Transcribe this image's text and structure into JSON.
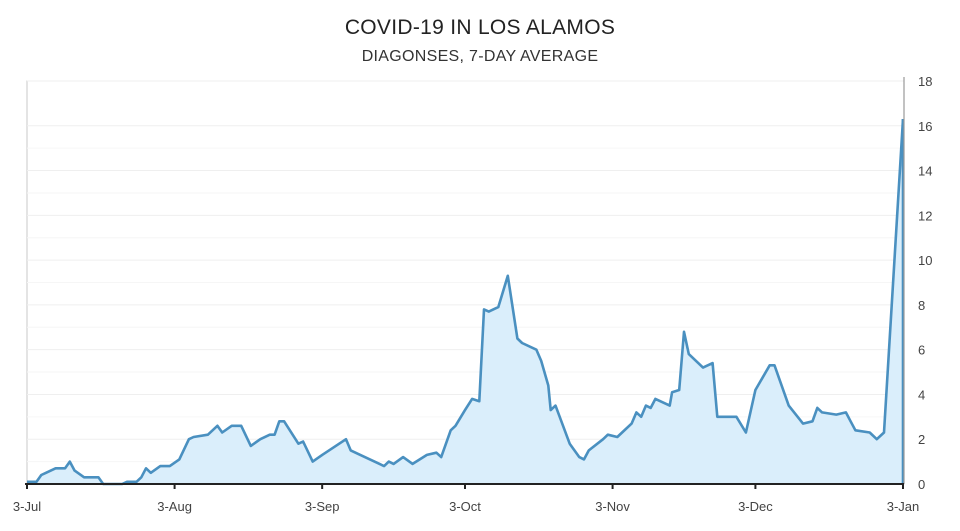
{
  "chart_data": {
    "type": "area",
    "title": "COVID-19 IN LOS ALAMOS",
    "subtitle": "DIAGONSES, 7-DAY AVERAGE",
    "xlabel": "",
    "ylabel": "",
    "ylim": [
      0,
      18
    ],
    "yticks": [
      0,
      2,
      4,
      6,
      8,
      10,
      12,
      14,
      16,
      18
    ],
    "y_axis_side": "right",
    "grid": true,
    "xlim_days": [
      0,
      184
    ],
    "xticks": [
      {
        "day": 0,
        "label": "3-Jul"
      },
      {
        "day": 31,
        "label": "3-Aug"
      },
      {
        "day": 62,
        "label": "3-Sep"
      },
      {
        "day": 92,
        "label": "3-Oct"
      },
      {
        "day": 123,
        "label": "3-Nov"
      },
      {
        "day": 153,
        "label": "3-Dec"
      },
      {
        "day": 184,
        "label": "3-Jan"
      }
    ],
    "series": [
      {
        "name": "Diagnoses, 7-day average",
        "color": "#4a90c0",
        "fill": "#daeefb",
        "points": [
          [
            0,
            0.1
          ],
          [
            2,
            0.1
          ],
          [
            3,
            0.4
          ],
          [
            4,
            0.5
          ],
          [
            6,
            0.7
          ],
          [
            8,
            0.7
          ],
          [
            9,
            1.0
          ],
          [
            10,
            0.6
          ],
          [
            12,
            0.3
          ],
          [
            15,
            0.3
          ],
          [
            16,
            0
          ],
          [
            20,
            0
          ],
          [
            21,
            0.1
          ],
          [
            23,
            0.1
          ],
          [
            24,
            0.3
          ],
          [
            25,
            0.7
          ],
          [
            26,
            0.5
          ],
          [
            28,
            0.8
          ],
          [
            30,
            0.8
          ],
          [
            32,
            1.1
          ],
          [
            34,
            2.0
          ],
          [
            35,
            2.1
          ],
          [
            38,
            2.2
          ],
          [
            40,
            2.6
          ],
          [
            41,
            2.3
          ],
          [
            43,
            2.6
          ],
          [
            45,
            2.6
          ],
          [
            47,
            1.7
          ],
          [
            49,
            2.0
          ],
          [
            51,
            2.2
          ],
          [
            52,
            2.2
          ],
          [
            53,
            2.8
          ],
          [
            54,
            2.8
          ],
          [
            57,
            1.8
          ],
          [
            58,
            1.9
          ],
          [
            60,
            1.0
          ],
          [
            62,
            1.3
          ],
          [
            67,
            2.0
          ],
          [
            68,
            1.5
          ],
          [
            70,
            1.3
          ],
          [
            73,
            1.0
          ],
          [
            75,
            0.8
          ],
          [
            76,
            1.0
          ],
          [
            77,
            0.9
          ],
          [
            79,
            1.2
          ],
          [
            81,
            0.9
          ],
          [
            84,
            1.3
          ],
          [
            86,
            1.4
          ],
          [
            87,
            1.2
          ],
          [
            89,
            2.4
          ],
          [
            90,
            2.6
          ],
          [
            92,
            3.3
          ],
          [
            93.5,
            3.8
          ],
          [
            95,
            3.7
          ],
          [
            96,
            7.8
          ],
          [
            97,
            7.7
          ],
          [
            99,
            7.9
          ],
          [
            101,
            9.3
          ],
          [
            103,
            6.5
          ],
          [
            104,
            6.3
          ],
          [
            107,
            6.0
          ],
          [
            108,
            5.5
          ],
          [
            109.5,
            4.4
          ],
          [
            110,
            3.3
          ],
          [
            111,
            3.5
          ],
          [
            114,
            1.8
          ],
          [
            116,
            1.2
          ],
          [
            117,
            1.1
          ],
          [
            118,
            1.5
          ],
          [
            121,
            2.0
          ],
          [
            122,
            2.2
          ],
          [
            124,
            2.1
          ],
          [
            125,
            2.3
          ],
          [
            127,
            2.7
          ],
          [
            128,
            3.2
          ],
          [
            129,
            3.0
          ],
          [
            130,
            3.5
          ],
          [
            131,
            3.4
          ],
          [
            132,
            3.8
          ],
          [
            135,
            3.5
          ],
          [
            135.5,
            4.1
          ],
          [
            137,
            4.2
          ],
          [
            138,
            6.8
          ],
          [
            139,
            5.8
          ],
          [
            142,
            5.2
          ],
          [
            144,
            5.4
          ],
          [
            145,
            3.0
          ],
          [
            149,
            3.0
          ],
          [
            151,
            2.3
          ],
          [
            153,
            4.2
          ],
          [
            156,
            5.3
          ],
          [
            157,
            5.3
          ],
          [
            160,
            3.5
          ],
          [
            163,
            2.7
          ],
          [
            165,
            2.8
          ],
          [
            166,
            3.4
          ],
          [
            167,
            3.2
          ],
          [
            170,
            3.1
          ],
          [
            172,
            3.2
          ],
          [
            173,
            2.8
          ],
          [
            174,
            2.4
          ],
          [
            177,
            2.3
          ],
          [
            178.5,
            2.0
          ],
          [
            180,
            2.3
          ],
          [
            184,
            16.3
          ]
        ]
      }
    ]
  }
}
